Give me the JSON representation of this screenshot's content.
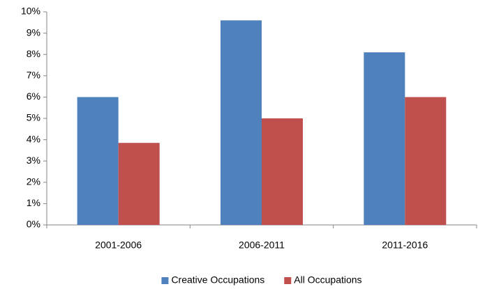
{
  "chart_data": {
    "type": "bar",
    "categories": [
      "2001-2006",
      "2006-2011",
      "2011-2016"
    ],
    "series": [
      {
        "name": "Creative Occupations",
        "color": "#4f81bd",
        "values": [
          6.0,
          9.6,
          8.1
        ]
      },
      {
        "name": "All Occupations",
        "color": "#c0504d",
        "values": [
          3.85,
          5.0,
          6.0
        ]
      }
    ],
    "ylim": [
      0,
      10
    ],
    "yticks": [
      {
        "value": 0,
        "label": "0%"
      },
      {
        "value": 1,
        "label": "1%"
      },
      {
        "value": 2,
        "label": "2%"
      },
      {
        "value": 3,
        "label": "3%"
      },
      {
        "value": 4,
        "label": "4%"
      },
      {
        "value": 5,
        "label": "5%"
      },
      {
        "value": 6,
        "label": "6%"
      },
      {
        "value": 7,
        "label": "7%"
      },
      {
        "value": 8,
        "label": "8%"
      },
      {
        "value": 9,
        "label": "9%"
      },
      {
        "value": 10,
        "label": "10%"
      }
    ],
    "legend": "bottom"
  }
}
